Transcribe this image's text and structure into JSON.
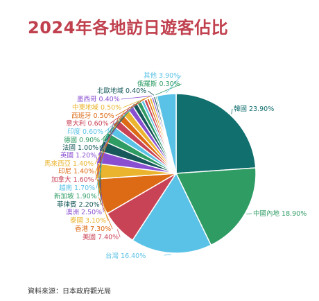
{
  "page": {
    "title": "2024年各地訪日遊客佔比",
    "source": "資料來源：日本政府觀光局"
  },
  "chart_data": {
    "type": "pie",
    "title": "2024年各地訪日遊客佔比",
    "unit": "%",
    "start": "12 o'clock",
    "direction": "clockwise",
    "slices": [
      {
        "label": "韓國",
        "value": 23.9,
        "value_text": "23.90%",
        "color": "#116f6e"
      },
      {
        "label": "中國內地",
        "value": 18.9,
        "value_text": "18.90%",
        "color": "#2f9c64"
      },
      {
        "label": "台灣",
        "value": 16.4,
        "value_text": "16.40%",
        "color": "#5ac2e6"
      },
      {
        "label": "美國",
        "value": 7.4,
        "value_text": "7.40%",
        "color": "#c94357"
      },
      {
        "label": "香港",
        "value": 7.3,
        "value_text": "7.30%",
        "color": "#dd6a14"
      },
      {
        "label": "泰國",
        "value": 3.1,
        "value_text": "3.10%",
        "color": "#ebb42f"
      },
      {
        "label": "澳洲",
        "value": 2.5,
        "value_text": "2.50%",
        "color": "#8a4fd1"
      },
      {
        "label": "菲律賓",
        "value": 2.2,
        "value_text": "2.20%",
        "color": "#17595b"
      },
      {
        "label": "新加坡",
        "value": 1.9,
        "value_text": "1.90%",
        "color": "#2f9c64"
      },
      {
        "label": "越南",
        "value": 1.7,
        "value_text": "1.70%",
        "color": "#5ac2e6"
      },
      {
        "label": "加拿大",
        "value": 1.6,
        "value_text": "1.60%",
        "color": "#c94357"
      },
      {
        "label": "印尼",
        "value": 1.4,
        "value_text": "1.40%",
        "color": "#dd6a14"
      },
      {
        "label": "馬來西亞",
        "value": 1.4,
        "value_text": "1.40%",
        "color": "#ebb42f"
      },
      {
        "label": "英國",
        "value": 1.2,
        "value_text": "1.20%",
        "color": "#8a4fd1"
      },
      {
        "label": "法國",
        "value": 1.0,
        "value_text": "1.00%",
        "color": "#17595b"
      },
      {
        "label": "德國",
        "value": 0.9,
        "value_text": "0.90%",
        "color": "#2f9c64"
      },
      {
        "label": "印度",
        "value": 0.6,
        "value_text": "0.60%",
        "color": "#5ac2e6"
      },
      {
        "label": "意大利",
        "value": 0.6,
        "value_text": "0.60%",
        "color": "#c94357"
      },
      {
        "label": "西班牙",
        "value": 0.5,
        "value_text": "0.50%",
        "color": "#dd6a14"
      },
      {
        "label": "中東地域",
        "value": 0.5,
        "value_text": "0.50%",
        "color": "#ebb42f"
      },
      {
        "label": "墨西哥",
        "value": 0.4,
        "value_text": "0.40%",
        "color": "#8a4fd1"
      },
      {
        "label": "北歐地域",
        "value": 0.4,
        "value_text": "0.40%",
        "color": "#17595b"
      },
      {
        "label": "俄羅斯",
        "value": 0.3,
        "value_text": "0.30%",
        "color": "#2f9c64"
      },
      {
        "label": "其他",
        "value": 3.9,
        "value_text": "3.90%",
        "color": "#5ac2e6"
      }
    ]
  }
}
